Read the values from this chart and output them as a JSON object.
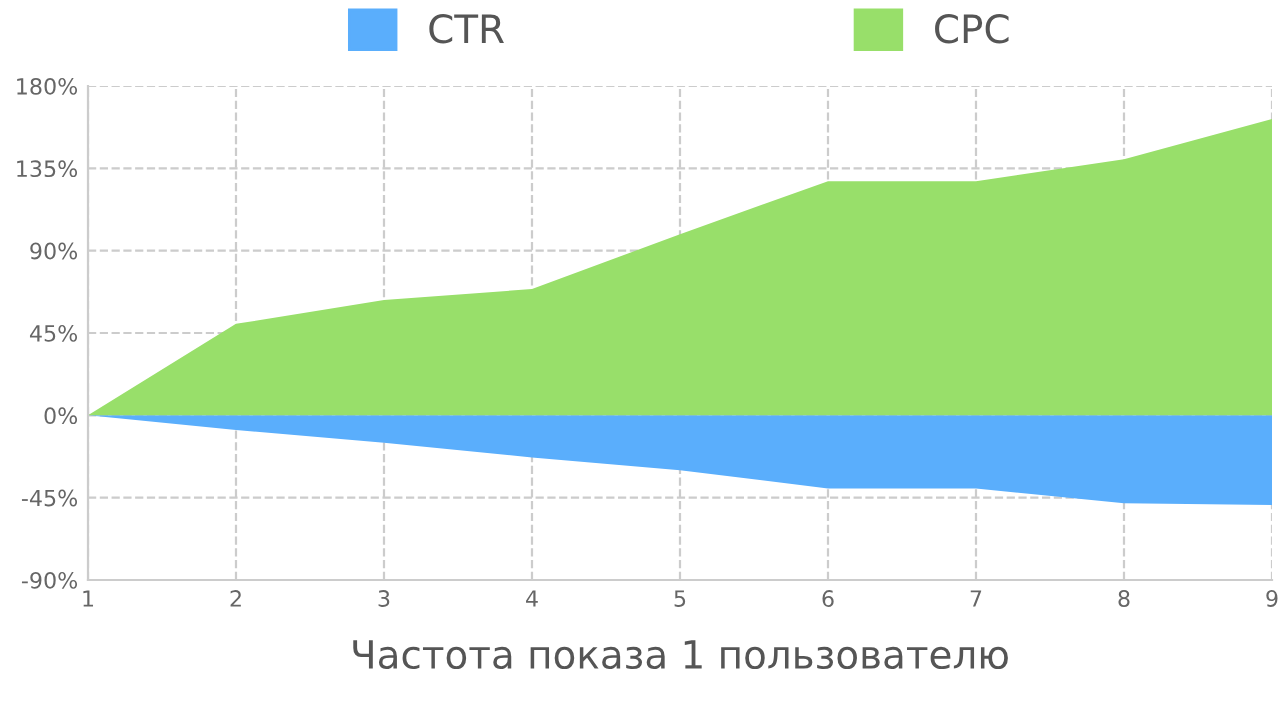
{
  "chart_data": {
    "type": "area",
    "xlabel": "Частота показа 1 пользователю",
    "x": [
      1,
      2,
      3,
      4,
      5,
      6,
      7,
      8,
      9
    ],
    "series": [
      {
        "name": "CTR",
        "color": "#5aaefc",
        "values": [
          0,
          -8,
          -15,
          -23,
          -30,
          -40,
          -40,
          -48,
          -49
        ]
      },
      {
        "name": "CPC",
        "color": "#98df6a",
        "values": [
          0,
          50,
          63,
          69,
          99,
          128,
          128,
          140,
          162
        ]
      }
    ],
    "xlim": [
      1,
      9
    ],
    "xticks": [
      1,
      2,
      3,
      4,
      5,
      6,
      7,
      8,
      9
    ],
    "ylim": [
      -90,
      180
    ],
    "yticks": [
      {
        "value": -90,
        "label": "-90%"
      },
      {
        "value": -45,
        "label": "-45%"
      },
      {
        "value": 0,
        "label": "0%"
      },
      {
        "value": 45,
        "label": "45%"
      },
      {
        "value": 90,
        "label": "90%"
      },
      {
        "value": 135,
        "label": "135%"
      },
      {
        "value": 180,
        "label": "180%"
      }
    ],
    "grid": true,
    "legend": "top"
  }
}
